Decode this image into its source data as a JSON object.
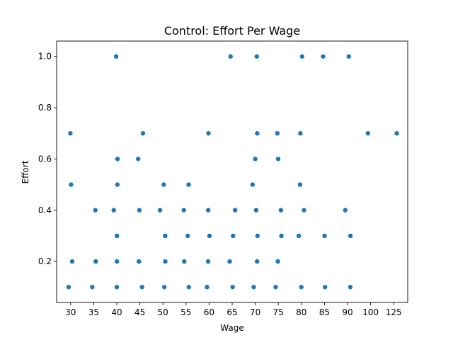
{
  "chart_data": {
    "type": "scatter",
    "title": "Control: Effort Per Wage",
    "xlabel": "Wage",
    "ylabel": "Effort",
    "x_scale": "categorical",
    "x_ticks": [
      "30",
      "35",
      "40",
      "45",
      "50",
      "55",
      "60",
      "65",
      "70",
      "75",
      "80",
      "85",
      "90",
      "100",
      "125"
    ],
    "y_ticks": [
      "0.2",
      "0.4",
      "0.6",
      "0.8",
      "1.0"
    ],
    "ylim": [
      0.04,
      1.06
    ],
    "grid": false,
    "color": "#1f77b4",
    "points": [
      {
        "x": "30",
        "y": 0.1
      },
      {
        "x": "30",
        "y": 0.2
      },
      {
        "x": "30",
        "y": 0.5
      },
      {
        "x": "30",
        "y": 0.7
      },
      {
        "x": "35",
        "y": 0.1
      },
      {
        "x": "35",
        "y": 0.2
      },
      {
        "x": "35",
        "y": 0.4
      },
      {
        "x": "40",
        "y": 0.1
      },
      {
        "x": "40",
        "y": 0.2
      },
      {
        "x": "40",
        "y": 0.3
      },
      {
        "x": "40",
        "y": 0.4
      },
      {
        "x": "40",
        "y": 0.5
      },
      {
        "x": "40",
        "y": 0.6
      },
      {
        "x": "40",
        "y": 1.0
      },
      {
        "x": "45",
        "y": 0.1
      },
      {
        "x": "45",
        "y": 0.2
      },
      {
        "x": "45",
        "y": 0.4
      },
      {
        "x": "45",
        "y": 0.6
      },
      {
        "x": "45",
        "y": 0.7
      },
      {
        "x": "50",
        "y": 0.1
      },
      {
        "x": "50",
        "y": 0.2
      },
      {
        "x": "50",
        "y": 0.3
      },
      {
        "x": "50",
        "y": 0.4
      },
      {
        "x": "50",
        "y": 0.5
      },
      {
        "x": "55",
        "y": 0.1
      },
      {
        "x": "55",
        "y": 0.2
      },
      {
        "x": "55",
        "y": 0.3
      },
      {
        "x": "55",
        "y": 0.4
      },
      {
        "x": "55",
        "y": 0.5
      },
      {
        "x": "60",
        "y": 0.1
      },
      {
        "x": "60",
        "y": 0.2
      },
      {
        "x": "60",
        "y": 0.3
      },
      {
        "x": "60",
        "y": 0.4
      },
      {
        "x": "60",
        "y": 0.7
      },
      {
        "x": "65",
        "y": 0.1
      },
      {
        "x": "65",
        "y": 0.2
      },
      {
        "x": "65",
        "y": 0.3
      },
      {
        "x": "65",
        "y": 0.4
      },
      {
        "x": "65",
        "y": 1.0
      },
      {
        "x": "70",
        "y": 0.1
      },
      {
        "x": "70",
        "y": 0.2
      },
      {
        "x": "70",
        "y": 0.3
      },
      {
        "x": "70",
        "y": 0.4
      },
      {
        "x": "70",
        "y": 0.5
      },
      {
        "x": "70",
        "y": 0.6
      },
      {
        "x": "70",
        "y": 0.7
      },
      {
        "x": "70",
        "y": 1.0
      },
      {
        "x": "75",
        "y": 0.1
      },
      {
        "x": "75",
        "y": 0.2
      },
      {
        "x": "75",
        "y": 0.3
      },
      {
        "x": "75",
        "y": 0.4
      },
      {
        "x": "75",
        "y": 0.6
      },
      {
        "x": "75",
        "y": 0.7
      },
      {
        "x": "80",
        "y": 0.1
      },
      {
        "x": "80",
        "y": 0.3
      },
      {
        "x": "80",
        "y": 0.4
      },
      {
        "x": "80",
        "y": 0.5
      },
      {
        "x": "80",
        "y": 0.7
      },
      {
        "x": "80",
        "y": 1.0
      },
      {
        "x": "85",
        "y": 0.1
      },
      {
        "x": "85",
        "y": 0.3
      },
      {
        "x": "85",
        "y": 1.0
      },
      {
        "x": "90",
        "y": 0.1
      },
      {
        "x": "90",
        "y": 0.3
      },
      {
        "x": "90",
        "y": 0.4
      },
      {
        "x": "90",
        "y": 1.0
      },
      {
        "x": "100",
        "y": 0.7
      },
      {
        "x": "125",
        "y": 0.7
      }
    ]
  }
}
